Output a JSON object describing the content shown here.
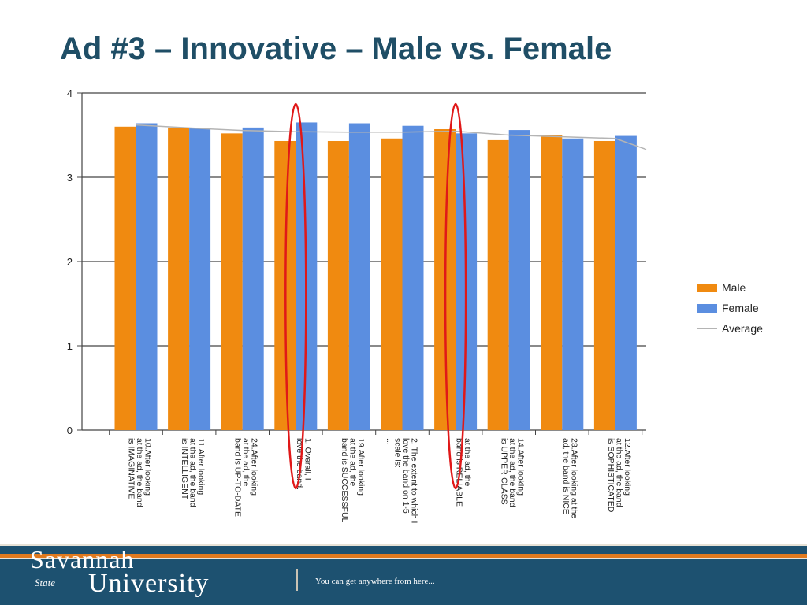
{
  "slide": {
    "title": "Ad #3 – Innovative – Male vs. Female"
  },
  "chart_data": {
    "type": "bar",
    "categories": [
      "10.After looking at the ad, the band is IMAGINATIVE",
      "11.After looking at the ad, the band is INTELLIGENT",
      "24.After looking at the ad, the band is UP-TO-DATE",
      "1. Overall, I love the band.",
      "19.After looking at the ad, the band is SUCCESSFUL",
      "2. The extent to which I love the band on 1-5 scale is: ...",
      "at the ad, the band is RELIABLE",
      "14.After looking at the ad, the band is UPPER-CLASS",
      "23.After looking at the ad, the band is NICE",
      "12.After looking at the ad, the band is SOPHISTICATED"
    ],
    "category_lines": [
      [
        "10.After looking",
        "at the ad, the band",
        "is IMAGINATIVE"
      ],
      [
        "11.After looking",
        "at the ad, the band",
        "is INTELLIGENT"
      ],
      [
        "24.After looking",
        "at the ad, the",
        "band is UP-TO-DATE"
      ],
      [
        "1. Overall, I",
        "love the band."
      ],
      [
        "19.After looking",
        "at the ad, the",
        "band is SUCCESSFUL"
      ],
      [
        "2. The extent to which I",
        "love the band on 1-5",
        "scale is:",
        "..."
      ],
      [
        "at the ad, the",
        "band is RELIABLE"
      ],
      [
        "14.After looking",
        "at the ad, the band",
        "is UPPER-CLASS"
      ],
      [
        "23.After looking at the",
        "ad, the band is NICE"
      ],
      [
        "12.After looking",
        "at the ad, the band",
        "is SOPHISTICATED"
      ]
    ],
    "series": [
      {
        "name": "Male",
        "color": "#f08a10",
        "values": [
          3.6,
          3.59,
          3.52,
          3.43,
          3.43,
          3.46,
          3.57,
          3.44,
          3.5,
          3.43
        ]
      },
      {
        "name": "Female",
        "color": "#5b8ee0",
        "values": [
          3.64,
          3.58,
          3.59,
          3.65,
          3.64,
          3.61,
          3.52,
          3.56,
          3.46,
          3.49
        ]
      }
    ],
    "average": {
      "name": "Average",
      "color": "#b4b4b4",
      "values": [
        3.62,
        3.585,
        3.555,
        3.54,
        3.535,
        3.535,
        3.545,
        3.5,
        3.48,
        3.46
      ],
      "end_value": 3.33
    },
    "yticks": [
      0,
      1,
      2,
      3,
      4
    ],
    "ylim": [
      0,
      4
    ],
    "grid": true,
    "legend_position": "right",
    "highlight_categories": [
      3,
      6
    ],
    "highlight_color": "#e01818"
  },
  "footer": {
    "brand_line1": "Savannah",
    "brand_state": "State",
    "brand_line2": "University",
    "tagline": "You can get anywhere from here..."
  }
}
